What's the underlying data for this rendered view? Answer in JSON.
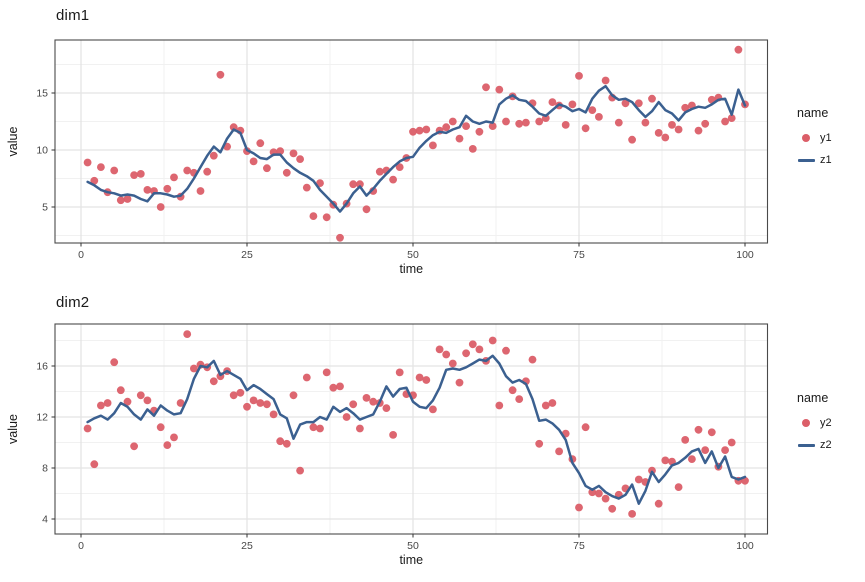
{
  "chart_data": [
    {
      "type": "scatter",
      "title": "dim1",
      "xlabel": "time",
      "ylabel": "value",
      "x_ticks": [
        0,
        25,
        50,
        75,
        100
      ],
      "y_ticks": [
        5,
        10,
        15
      ],
      "xlim": [
        -4,
        104
      ],
      "ylim": [
        1.7,
        19.8
      ],
      "grid": "on",
      "legend": {
        "title": "name",
        "position": "right",
        "entries": [
          {
            "label": "y1",
            "type": "point"
          },
          {
            "label": "z1",
            "type": "line"
          }
        ]
      },
      "x_values": "t = 1..100 (step 1)",
      "series": [
        {
          "name": "y1",
          "type": "scatter",
          "color": "#db5e68",
          "values": [
            8.9,
            7.3,
            8.5,
            6.3,
            8.2,
            5.6,
            5.7,
            7.8,
            7.9,
            6.5,
            6.4,
            5.0,
            6.6,
            7.6,
            5.9,
            8.2,
            8.0,
            6.4,
            8.1,
            9.5,
            16.6,
            10.3,
            12.0,
            11.7,
            9.9,
            9.0,
            10.6,
            8.4,
            9.8,
            9.9,
            8.0,
            9.7,
            9.2,
            6.7,
            4.2,
            7.1,
            4.1,
            5.2,
            2.3,
            5.3,
            7.0,
            7.0,
            4.8,
            6.4,
            8.1,
            8.2,
            7.4,
            8.5,
            9.3,
            11.6,
            11.7,
            11.8,
            10.4,
            11.7,
            12.0,
            12.5,
            11.0,
            12.1,
            10.1,
            11.6,
            15.5,
            12.1,
            15.3,
            12.5,
            14.7,
            12.3,
            12.4,
            14.1,
            12.5,
            12.8,
            14.2,
            13.9,
            12.2,
            14.0,
            16.5,
            11.9,
            13.5,
            12.9,
            16.1,
            14.6,
            12.4,
            14.1,
            10.9,
            14.1,
            12.4,
            14.5,
            11.5,
            11.1,
            12.2,
            11.8,
            13.7,
            13.9,
            11.7,
            12.3,
            14.4,
            14.6,
            12.5,
            12.8,
            18.8,
            14.0
          ]
        },
        {
          "name": "z1",
          "type": "line",
          "color": "#3b6090",
          "values": [
            7.2,
            6.9,
            6.5,
            6.3,
            6.2,
            6.0,
            6.1,
            6.0,
            5.7,
            5.5,
            6.2,
            6.2,
            6.1,
            5.9,
            6.0,
            6.6,
            7.5,
            8.5,
            9.5,
            10.3,
            9.8,
            11.0,
            11.8,
            11.5,
            10.0,
            9.7,
            9.3,
            9.2,
            9.6,
            9.6,
            8.9,
            8.4,
            8.0,
            7.7,
            7.3,
            6.5,
            5.9,
            5.3,
            4.6,
            5.3,
            6.2,
            6.8,
            6.0,
            6.6,
            7.3,
            7.9,
            8.5,
            9.0,
            9.3,
            9.4,
            10.2,
            10.8,
            11.3,
            11.6,
            11.5,
            11.8,
            12.0,
            13.0,
            12.5,
            12.3,
            12.5,
            12.4,
            14.0,
            14.5,
            14.8,
            14.4,
            14.3,
            13.8,
            13.2,
            13.0,
            13.5,
            14.0,
            13.8,
            13.4,
            13.6,
            13.3,
            14.5,
            15.2,
            15.6,
            14.8,
            14.4,
            14.5,
            14.2,
            13.5,
            12.9,
            13.4,
            14.2,
            13.5,
            13.2,
            12.6,
            13.3,
            13.6,
            13.8,
            13.7,
            14.0,
            14.4,
            14.5,
            13.1,
            15.3,
            13.9
          ]
        }
      ]
    },
    {
      "type": "scatter",
      "title": "dim2",
      "xlabel": "time",
      "ylabel": "value",
      "x_ticks": [
        0,
        25,
        50,
        75,
        100
      ],
      "y_ticks": [
        4,
        8,
        12,
        16
      ],
      "xlim": [
        -4,
        104
      ],
      "ylim": [
        2.8,
        19.3
      ],
      "grid": "on",
      "legend": {
        "title": "name",
        "position": "right",
        "entries": [
          {
            "label": "y2",
            "type": "point"
          },
          {
            "label": "z2",
            "type": "line"
          }
        ]
      },
      "x_values": "t = 1..100 (step 1)",
      "series": [
        {
          "name": "y2",
          "type": "scatter",
          "color": "#db5e68",
          "values": [
            11.1,
            8.3,
            12.9,
            13.1,
            16.3,
            14.1,
            13.2,
            9.7,
            13.7,
            13.3,
            12.5,
            11.2,
            9.8,
            10.4,
            13.1,
            18.5,
            15.8,
            16.1,
            15.9,
            14.8,
            15.2,
            15.6,
            13.7,
            13.9,
            12.8,
            13.3,
            13.1,
            13.0,
            12.2,
            10.1,
            9.9,
            13.7,
            7.8,
            15.1,
            11.2,
            11.1,
            15.5,
            14.3,
            14.4,
            12.0,
            13.0,
            11.1,
            13.5,
            13.2,
            13.1,
            12.7,
            10.6,
            15.5,
            13.8,
            13.7,
            15.1,
            14.9,
            12.6,
            17.3,
            16.9,
            16.2,
            14.7,
            17.0,
            17.7,
            17.3,
            16.4,
            18.0,
            12.9,
            17.2,
            14.1,
            13.4,
            14.8,
            16.5,
            9.9,
            12.9,
            13.1,
            9.3,
            10.7,
            8.7,
            4.9,
            11.2,
            6.1,
            6.0,
            5.6,
            4.8,
            5.9,
            6.4,
            4.4,
            7.1,
            6.9,
            7.8,
            5.2,
            8.6,
            8.5,
            6.5,
            10.2,
            8.7,
            11.0,
            9.4,
            10.8,
            8.1,
            9.4,
            10.0,
            7.0,
            7.0
          ]
        },
        {
          "name": "z2",
          "type": "line",
          "color": "#3b6090",
          "values": [
            11.6,
            11.9,
            12.1,
            11.8,
            12.3,
            13.1,
            12.8,
            12.2,
            11.8,
            12.6,
            12.1,
            12.9,
            12.5,
            12.2,
            12.3,
            13.4,
            15.0,
            16.0,
            15.9,
            16.4,
            15.3,
            15.6,
            15.3,
            15.0,
            14.1,
            14.5,
            14.2,
            13.8,
            13.4,
            12.2,
            11.9,
            10.3,
            11.4,
            11.6,
            11.6,
            12.0,
            11.8,
            12.8,
            12.4,
            12.7,
            12.3,
            11.8,
            12.0,
            12.2,
            13.2,
            14.4,
            13.6,
            14.2,
            14.3,
            13.2,
            12.8,
            12.7,
            13.3,
            14.3,
            15.7,
            15.8,
            15.7,
            15.9,
            16.2,
            16.5,
            16.4,
            16.8,
            16.2,
            15.2,
            14.7,
            14.9,
            14.6,
            13.4,
            11.7,
            11.8,
            11.5,
            11.0,
            10.2,
            8.4,
            7.6,
            6.6,
            6.3,
            6.6,
            6.1,
            5.8,
            5.6,
            5.9,
            6.7,
            5.2,
            6.2,
            7.7,
            6.9,
            7.5,
            8.2,
            8.4,
            8.8,
            9.3,
            9.5,
            8.4,
            9.3,
            8.0,
            8.9,
            7.3,
            7.1,
            7.3
          ]
        }
      ]
    }
  ],
  "style": {
    "point_color": "#db5e68",
    "line_color": "#3b6090",
    "grid_major_color": "#e4e4e4",
    "grid_minor_color": "#f1f1f1",
    "panel_border_color": "#4a4a4a",
    "text_color": "#1a1a1a",
    "tick_label_color": "#474747"
  }
}
